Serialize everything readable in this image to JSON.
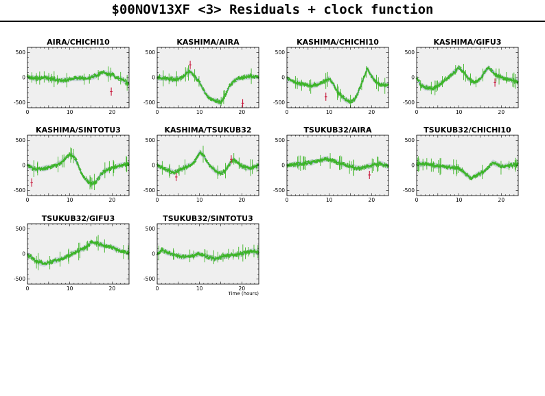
{
  "title": "$00NOV13XF <3> Residuals + clock function",
  "x_axis_label": "Time (hours)",
  "colors": {
    "panel_bg": "#efefef",
    "band": "#c9d1dc",
    "clock_line": "#4a6fd6",
    "points": "#3cb526",
    "outliers": "#c8193c"
  },
  "chart_data": [
    {
      "type": "scatter",
      "title": "AIRA/CHICHI10",
      "xlim": [
        0,
        24
      ],
      "ylim": [
        -600,
        600
      ],
      "x_ticks": [
        0,
        10,
        20
      ],
      "y_ticks": [
        500,
        0,
        -500
      ],
      "clock": [
        [
          0,
          10
        ],
        [
          2,
          -20
        ],
        [
          4,
          0
        ],
        [
          6,
          -30
        ],
        [
          8,
          -60
        ],
        [
          10,
          -40
        ],
        [
          12,
          -10
        ],
        [
          14,
          -20
        ],
        [
          16,
          30
        ],
        [
          18,
          110
        ],
        [
          19,
          60
        ],
        [
          20,
          80
        ],
        [
          21,
          -10
        ],
        [
          22,
          -20
        ],
        [
          24,
          -120
        ]
      ],
      "outliers": [
        [
          19.8,
          -280
        ]
      ]
    },
    {
      "type": "scatter",
      "title": "KASHIMA/AIRA",
      "xlim": [
        0,
        24
      ],
      "ylim": [
        -600,
        600
      ],
      "x_ticks": [
        0,
        10,
        20
      ],
      "y_ticks": [
        500,
        0,
        -500
      ],
      "clock": [
        [
          0,
          0
        ],
        [
          2,
          -20
        ],
        [
          4,
          -40
        ],
        [
          6,
          0
        ],
        [
          7,
          110
        ],
        [
          8,
          100
        ],
        [
          9,
          20
        ],
        [
          10,
          -100
        ],
        [
          11,
          -260
        ],
        [
          12,
          -380
        ],
        [
          13,
          -440
        ],
        [
          14,
          -460
        ],
        [
          15,
          -500
        ],
        [
          16,
          -360
        ],
        [
          17,
          -180
        ],
        [
          18,
          -80
        ],
        [
          19,
          -30
        ],
        [
          20,
          0
        ],
        [
          22,
          20
        ],
        [
          24,
          10
        ]
      ],
      "outliers": [
        [
          7.8,
          250
        ],
        [
          20.2,
          -510
        ]
      ]
    },
    {
      "type": "scatter",
      "title": "KASHIMA/CHICHI10",
      "xlim": [
        0,
        24
      ],
      "ylim": [
        -600,
        600
      ],
      "x_ticks": [
        0,
        10,
        20
      ],
      "y_ticks": [
        500,
        0,
        -500
      ],
      "clock": [
        [
          0,
          -20
        ],
        [
          2,
          -100
        ],
        [
          4,
          -140
        ],
        [
          6,
          -160
        ],
        [
          8,
          -120
        ],
        [
          9,
          -60
        ],
        [
          10,
          -20
        ],
        [
          11,
          -140
        ],
        [
          12,
          -280
        ],
        [
          13,
          -380
        ],
        [
          14,
          -450
        ],
        [
          15,
          -490
        ],
        [
          16,
          -440
        ],
        [
          17,
          -260
        ],
        [
          18,
          -40
        ],
        [
          19,
          180
        ],
        [
          20,
          20
        ],
        [
          21,
          -80
        ],
        [
          22,
          -140
        ],
        [
          24,
          -150
        ]
      ],
      "outliers": [
        [
          9.2,
          -380
        ]
      ]
    },
    {
      "type": "scatter",
      "title": "KASHIMA/GIFU3",
      "xlim": [
        0,
        24
      ],
      "ylim": [
        -600,
        600
      ],
      "x_ticks": [
        0,
        10,
        20
      ],
      "y_ticks": [
        500,
        0,
        -500
      ],
      "clock": [
        [
          0,
          0
        ],
        [
          1,
          -150
        ],
        [
          2,
          -200
        ],
        [
          4,
          -220
        ],
        [
          6,
          -100
        ],
        [
          8,
          40
        ],
        [
          10,
          200
        ],
        [
          11,
          120
        ],
        [
          12,
          0
        ],
        [
          13,
          -80
        ],
        [
          14,
          -100
        ],
        [
          15,
          -30
        ],
        [
          16,
          100
        ],
        [
          17,
          200
        ],
        [
          18,
          120
        ],
        [
          19,
          30
        ],
        [
          20,
          0
        ],
        [
          22,
          -40
        ],
        [
          24,
          -80
        ]
      ],
      "outliers": [
        [
          18.5,
          -100
        ]
      ]
    },
    {
      "type": "scatter",
      "title": "KASHIMA/SINTOTU3",
      "xlim": [
        0,
        24
      ],
      "ylim": [
        -600,
        600
      ],
      "x_ticks": [
        0,
        10,
        20
      ],
      "y_ticks": [
        500,
        0,
        -500
      ],
      "clock": [
        [
          0,
          0
        ],
        [
          1,
          -50
        ],
        [
          2,
          -80
        ],
        [
          4,
          -60
        ],
        [
          6,
          -20
        ],
        [
          8,
          60
        ],
        [
          10,
          220
        ],
        [
          11,
          180
        ],
        [
          12,
          0
        ],
        [
          13,
          -200
        ],
        [
          14,
          -300
        ],
        [
          15,
          -360
        ],
        [
          16,
          -340
        ],
        [
          17,
          -220
        ],
        [
          18,
          -120
        ],
        [
          20,
          -50
        ],
        [
          22,
          0
        ],
        [
          24,
          40
        ]
      ],
      "outliers": [
        [
          1,
          -340
        ]
      ]
    },
    {
      "type": "scatter",
      "title": "KASHIMA/TSUKUB32",
      "xlim": [
        0,
        24
      ],
      "ylim": [
        -600,
        600
      ],
      "x_ticks": [
        0,
        10,
        20
      ],
      "y_ticks": [
        500,
        0,
        -500
      ],
      "clock": [
        [
          0,
          0
        ],
        [
          2,
          -80
        ],
        [
          4,
          -140
        ],
        [
          6,
          -60
        ],
        [
          8,
          20
        ],
        [
          9,
          100
        ],
        [
          10,
          260
        ],
        [
          11,
          200
        ],
        [
          12,
          40
        ],
        [
          13,
          -60
        ],
        [
          14,
          -120
        ],
        [
          15,
          -160
        ],
        [
          16,
          -120
        ],
        [
          17,
          20
        ],
        [
          18,
          120
        ],
        [
          19,
          60
        ],
        [
          20,
          -20
        ],
        [
          22,
          -60
        ],
        [
          24,
          0
        ]
      ],
      "outliers": [
        [
          4.5,
          -230
        ],
        [
          17.5,
          120
        ]
      ]
    },
    {
      "type": "scatter",
      "title": "TSUKUB32/AIRA",
      "xlim": [
        0,
        24
      ],
      "ylim": [
        -600,
        600
      ],
      "x_ticks": [
        0,
        10,
        20
      ],
      "y_ticks": [
        500,
        0,
        -500
      ],
      "clock": [
        [
          0,
          0
        ],
        [
          2,
          20
        ],
        [
          4,
          40
        ],
        [
          6,
          60
        ],
        [
          8,
          100
        ],
        [
          9,
          130
        ],
        [
          10,
          120
        ],
        [
          12,
          60
        ],
        [
          14,
          0
        ],
        [
          16,
          -40
        ],
        [
          17,
          -60
        ],
        [
          18,
          -40
        ],
        [
          20,
          0
        ],
        [
          22,
          40
        ],
        [
          24,
          -20
        ]
      ],
      "outliers": [
        [
          19.5,
          -190
        ]
      ]
    },
    {
      "type": "scatter",
      "title": "TSUKUB32/CHICHI10",
      "xlim": [
        0,
        24
      ],
      "ylim": [
        -600,
        600
      ],
      "x_ticks": [
        0,
        10,
        20
      ],
      "y_ticks": [
        500,
        0,
        -500
      ],
      "clock": [
        [
          0,
          20
        ],
        [
          2,
          30
        ],
        [
          4,
          0
        ],
        [
          6,
          -20
        ],
        [
          8,
          -40
        ],
        [
          10,
          -60
        ],
        [
          12,
          -200
        ],
        [
          13,
          -250
        ],
        [
          14,
          -200
        ],
        [
          16,
          -120
        ],
        [
          17,
          -40
        ],
        [
          18,
          60
        ],
        [
          19,
          20
        ],
        [
          20,
          -20
        ],
        [
          22,
          0
        ],
        [
          24,
          30
        ]
      ],
      "outliers": []
    },
    {
      "type": "scatter",
      "title": "TSUKUB32/GIFU3",
      "xlim": [
        0,
        24
      ],
      "ylim": [
        -600,
        600
      ],
      "x_ticks": [
        0,
        10,
        20
      ],
      "y_ticks": [
        500,
        0,
        -500
      ],
      "clock": [
        [
          0,
          -20
        ],
        [
          1,
          -60
        ],
        [
          2,
          -150
        ],
        [
          4,
          -200
        ],
        [
          6,
          -150
        ],
        [
          8,
          -100
        ],
        [
          10,
          -20
        ],
        [
          12,
          60
        ],
        [
          14,
          140
        ],
        [
          15,
          230
        ],
        [
          16,
          220
        ],
        [
          18,
          170
        ],
        [
          20,
          130
        ],
        [
          22,
          60
        ],
        [
          24,
          20
        ]
      ],
      "outliers": []
    },
    {
      "type": "scatter",
      "title": "TSUKUB32/SINTOTU3",
      "xlim": [
        0,
        24
      ],
      "ylim": [
        -600,
        600
      ],
      "x_ticks": [
        0,
        10,
        20
      ],
      "y_ticks": [
        500,
        0,
        -500
      ],
      "clock": [
        [
          0,
          0
        ],
        [
          1,
          80
        ],
        [
          2,
          40
        ],
        [
          4,
          -20
        ],
        [
          6,
          -60
        ],
        [
          8,
          -40
        ],
        [
          10,
          0
        ],
        [
          12,
          -60
        ],
        [
          14,
          -100
        ],
        [
          16,
          -40
        ],
        [
          18,
          -20
        ],
        [
          20,
          0
        ],
        [
          22,
          60
        ],
        [
          24,
          30
        ]
      ],
      "outliers": []
    }
  ]
}
